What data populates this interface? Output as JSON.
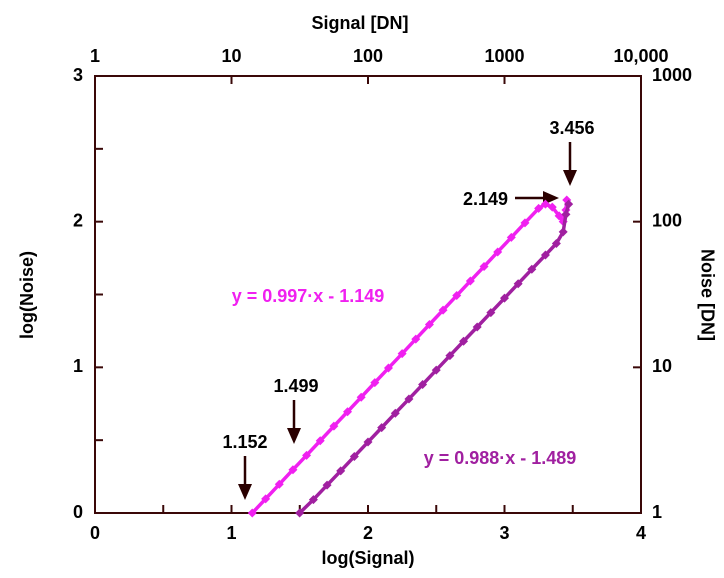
{
  "chart_data": {
    "type": "line",
    "title": "Signal [DN]",
    "x_label": "log(Signal)",
    "y_label": "log(Noise)",
    "y2_label": "Noise [DN]",
    "xlim": [
      0,
      4
    ],
    "xticks": [
      0,
      1,
      2,
      3,
      4
    ],
    "xminorticks": [
      0.5,
      1.5,
      2.5,
      3.5
    ],
    "ylim": [
      0,
      3
    ],
    "yticks": [
      0,
      1,
      2,
      3
    ],
    "yminorticks": [
      0.5,
      1.5,
      2.5
    ],
    "x2lim": [
      1,
      10000
    ],
    "x2log": true,
    "x2ticks": [
      1,
      10,
      100,
      1000,
      {
        "value": 10000,
        "label": "10,000"
      }
    ],
    "y2lim": [
      1,
      1000
    ],
    "y2log": true,
    "y2ticks": [
      1,
      10,
      100,
      1000
    ],
    "series": [
      {
        "color": "#f020f0",
        "fit_label": "y = 0.997·x - 1.149",
        "x": [
          1.152,
          1.25,
          1.35,
          1.45,
          1.55,
          1.65,
          1.75,
          1.85,
          1.95,
          2.05,
          2.15,
          2.25,
          2.35,
          2.45,
          2.55,
          2.65,
          2.75,
          2.85,
          2.95,
          3.05,
          3.15,
          3.25,
          3.3,
          3.35,
          3.4,
          3.43,
          3.45,
          3.456
        ],
        "values": [
          0.0,
          0.097,
          0.197,
          0.297,
          0.396,
          0.496,
          0.596,
          0.695,
          0.795,
          0.895,
          0.995,
          1.094,
          1.194,
          1.294,
          1.393,
          1.493,
          1.593,
          1.692,
          1.792,
          1.892,
          1.992,
          2.091,
          2.12,
          2.1,
          2.04,
          2.0,
          2.08,
          2.149
        ]
      },
      {
        "color": "#a020a0",
        "fit_label": "y = 0.988·x - 1.489",
        "x": [
          1.499,
          1.6,
          1.7,
          1.8,
          1.9,
          2.0,
          2.1,
          2.2,
          2.3,
          2.4,
          2.5,
          2.6,
          2.7,
          2.8,
          2.9,
          3.0,
          3.1,
          3.2,
          3.3,
          3.38,
          3.43,
          3.45,
          3.47
        ],
        "values": [
          0.0,
          0.092,
          0.191,
          0.289,
          0.388,
          0.487,
          0.586,
          0.685,
          0.783,
          0.882,
          0.981,
          1.08,
          1.179,
          1.277,
          1.376,
          1.475,
          1.574,
          1.673,
          1.771,
          1.85,
          1.93,
          2.05,
          2.12
        ]
      }
    ],
    "annotations": [
      "3.456",
      "2.149",
      "1.499",
      "1.152"
    ]
  }
}
